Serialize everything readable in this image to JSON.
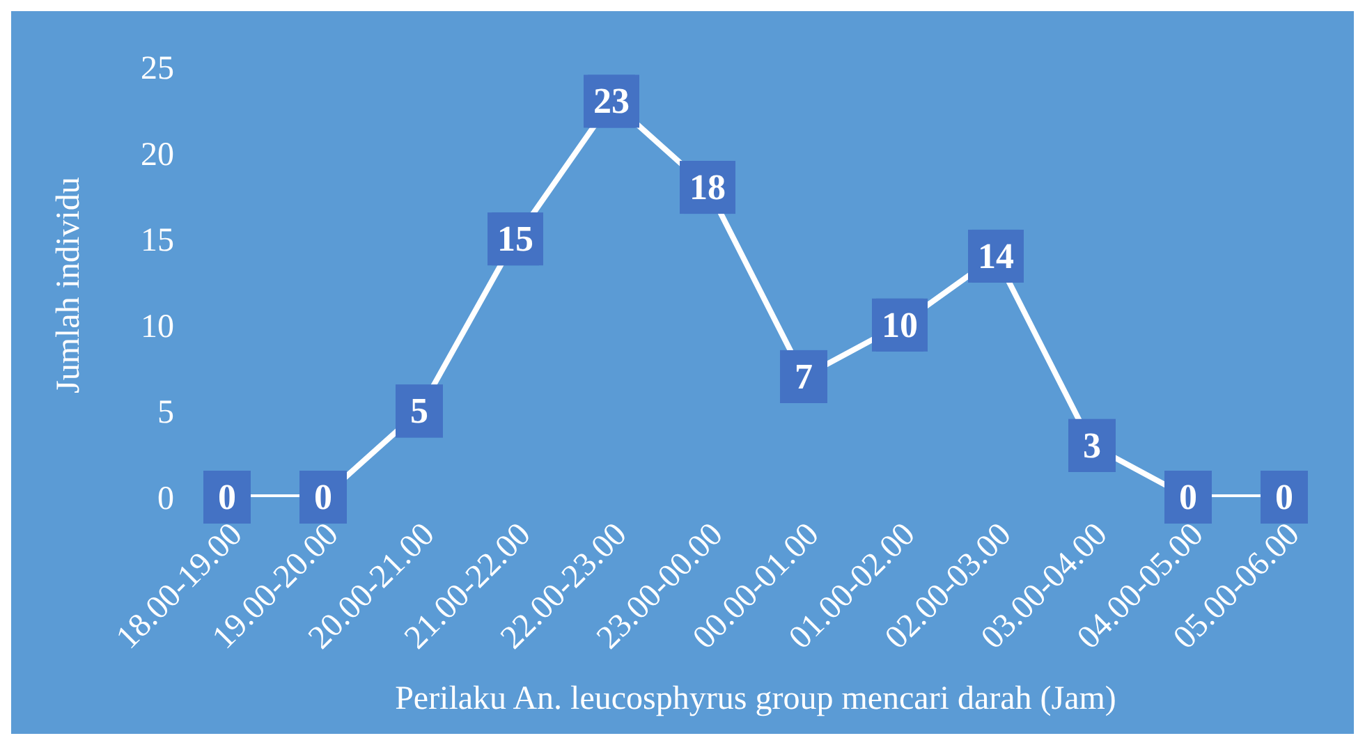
{
  "chart_data": {
    "type": "line",
    "xlabel": "Perilaku An. leucosphyrus group mencari darah (Jam)",
    "ylabel": "Jumlah individu",
    "categories": [
      "18.00-19.00",
      "19.00-20.00",
      "20.00-21.00",
      "21.00-22.00",
      "22.00-23.00",
      "23.00-00.00",
      "00.00-01.00",
      "01.00-02.00",
      "02.00-03.00",
      "03.00-04.00",
      "04.00-05.00",
      "05.00-06.00"
    ],
    "series": [
      {
        "color": "#ffffff",
        "values": [
          0,
          0,
          5,
          15,
          23,
          18,
          7,
          10,
          14,
          3,
          0,
          0
        ]
      }
    ],
    "ylim": [
      0,
      25
    ],
    "yticks": [
      0,
      5,
      10,
      15,
      20,
      25
    ],
    "data_labels": true,
    "marker": "square",
    "grid": false,
    "legend": false
  }
}
